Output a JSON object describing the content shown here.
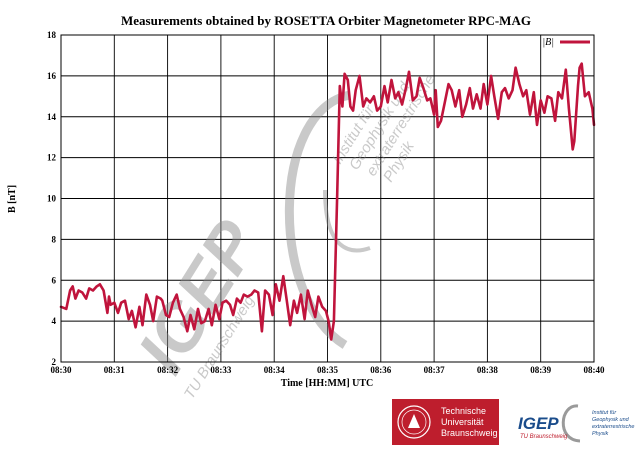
{
  "chart_data": {
    "type": "line",
    "title": "Measurements obtained by ROSETTA Orbiter Magnetometer RPC-MAG",
    "xlabel": "Time [HH:MM] UTC",
    "ylabel": "B [nT]",
    "xlim": [
      0,
      10
    ],
    "ylim": [
      2,
      18
    ],
    "grid": true,
    "legend_position": "top-right",
    "x_tick_labels": [
      "08:30",
      "08:31",
      "08:32",
      "08:33",
      "08:34",
      "08:35",
      "08:36",
      "08:37",
      "08:38",
      "08:39",
      "08:40"
    ],
    "y_ticks": [
      2,
      4,
      6,
      8,
      10,
      12,
      14,
      16,
      18
    ],
    "series": [
      {
        "name": "|B|",
        "color": "#c0143c",
        "points": [
          [
            0.0,
            4.7
          ],
          [
            0.1,
            4.6
          ],
          [
            0.17,
            5.5
          ],
          [
            0.22,
            5.7
          ],
          [
            0.27,
            5.1
          ],
          [
            0.33,
            5.5
          ],
          [
            0.4,
            5.4
          ],
          [
            0.47,
            5.1
          ],
          [
            0.53,
            5.6
          ],
          [
            0.6,
            5.5
          ],
          [
            0.67,
            5.7
          ],
          [
            0.73,
            5.8
          ],
          [
            0.8,
            5.5
          ],
          [
            0.87,
            4.4
          ],
          [
            0.9,
            5.2
          ],
          [
            0.93,
            4.8
          ],
          [
            1.0,
            4.9
          ],
          [
            1.07,
            4.4
          ],
          [
            1.13,
            4.9
          ],
          [
            1.2,
            5.0
          ],
          [
            1.27,
            4.1
          ],
          [
            1.33,
            4.5
          ],
          [
            1.4,
            3.7
          ],
          [
            1.47,
            4.7
          ],
          [
            1.53,
            3.8
          ],
          [
            1.6,
            5.3
          ],
          [
            1.67,
            4.8
          ],
          [
            1.73,
            4.0
          ],
          [
            1.8,
            5.2
          ],
          [
            1.87,
            5.1
          ],
          [
            1.9,
            5.0
          ],
          [
            1.97,
            4.3
          ],
          [
            2.03,
            4.2
          ],
          [
            2.1,
            4.9
          ],
          [
            2.17,
            5.3
          ],
          [
            2.23,
            4.6
          ],
          [
            2.3,
            4.2
          ],
          [
            2.37,
            3.5
          ],
          [
            2.43,
            4.3
          ],
          [
            2.5,
            3.6
          ],
          [
            2.57,
            4.6
          ],
          [
            2.63,
            3.9
          ],
          [
            2.7,
            4.0
          ],
          [
            2.77,
            4.6
          ],
          [
            2.83,
            3.8
          ],
          [
            2.9,
            4.8
          ],
          [
            2.97,
            4.1
          ],
          [
            3.03,
            4.9
          ],
          [
            3.1,
            5.0
          ],
          [
            3.17,
            4.8
          ],
          [
            3.23,
            4.3
          ],
          [
            3.3,
            5.1
          ],
          [
            3.37,
            4.9
          ],
          [
            3.43,
            5.3
          ],
          [
            3.5,
            5.2
          ],
          [
            3.57,
            5.3
          ],
          [
            3.63,
            5.5
          ],
          [
            3.7,
            5.4
          ],
          [
            3.77,
            3.5
          ],
          [
            3.83,
            5.5
          ],
          [
            3.9,
            5.3
          ],
          [
            3.97,
            4.3
          ],
          [
            4.03,
            5.8
          ],
          [
            4.1,
            5.0
          ],
          [
            4.17,
            6.2
          ],
          [
            4.23,
            5.1
          ],
          [
            4.3,
            3.8
          ],
          [
            4.37,
            5.0
          ],
          [
            4.43,
            4.4
          ],
          [
            4.5,
            5.3
          ],
          [
            4.57,
            4.1
          ],
          [
            4.63,
            5.5
          ],
          [
            4.7,
            4.8
          ],
          [
            4.77,
            4.2
          ],
          [
            4.83,
            5.2
          ],
          [
            4.9,
            4.7
          ],
          [
            4.97,
            4.5
          ],
          [
            5.02,
            4.0
          ],
          [
            5.07,
            3.1
          ],
          [
            5.12,
            4.0
          ],
          [
            5.18,
            10.0
          ],
          [
            5.23,
            15.5
          ],
          [
            5.28,
            14.5
          ],
          [
            5.32,
            16.1
          ],
          [
            5.38,
            15.8
          ],
          [
            5.43,
            14.5
          ],
          [
            5.48,
            14.3
          ],
          [
            5.53,
            15.3
          ],
          [
            5.6,
            16.0
          ],
          [
            5.67,
            14.5
          ],
          [
            5.73,
            14.9
          ],
          [
            5.8,
            14.7
          ],
          [
            5.87,
            15.0
          ],
          [
            5.93,
            14.3
          ],
          [
            6.0,
            14.5
          ],
          [
            6.07,
            15.5
          ],
          [
            6.13,
            14.7
          ],
          [
            6.2,
            15.8
          ],
          [
            6.27,
            14.9
          ],
          [
            6.33,
            15.2
          ],
          [
            6.4,
            14.6
          ],
          [
            6.47,
            15.4
          ],
          [
            6.53,
            16.2
          ],
          [
            6.6,
            14.8
          ],
          [
            6.67,
            15.0
          ],
          [
            6.73,
            15.9
          ],
          [
            6.8,
            15.4
          ],
          [
            6.87,
            14.8
          ],
          [
            6.93,
            14.9
          ],
          [
            7.0,
            14.1
          ],
          [
            7.03,
            15.3
          ],
          [
            7.07,
            13.5
          ],
          [
            7.13,
            13.8
          ],
          [
            7.2,
            14.7
          ],
          [
            7.27,
            15.6
          ],
          [
            7.33,
            15.3
          ],
          [
            7.4,
            14.5
          ],
          [
            7.47,
            15.3
          ],
          [
            7.53,
            14.0
          ],
          [
            7.6,
            14.6
          ],
          [
            7.67,
            15.4
          ],
          [
            7.73,
            14.4
          ],
          [
            7.8,
            15.1
          ],
          [
            7.87,
            14.4
          ],
          [
            7.93,
            15.6
          ],
          [
            8.0,
            14.6
          ],
          [
            8.07,
            16.0
          ],
          [
            8.13,
            15.0
          ],
          [
            8.2,
            13.9
          ],
          [
            8.27,
            15.2
          ],
          [
            8.33,
            15.4
          ],
          [
            8.4,
            14.9
          ],
          [
            8.47,
            15.3
          ],
          [
            8.53,
            16.4
          ],
          [
            8.6,
            15.6
          ],
          [
            8.67,
            15.0
          ],
          [
            8.73,
            15.3
          ],
          [
            8.8,
            14.1
          ],
          [
            8.87,
            15.2
          ],
          [
            8.93,
            13.6
          ],
          [
            9.0,
            14.8
          ],
          [
            9.07,
            14.2
          ],
          [
            9.13,
            15.0
          ],
          [
            9.2,
            14.9
          ],
          [
            9.27,
            13.8
          ],
          [
            9.33,
            15.2
          ],
          [
            9.4,
            14.9
          ],
          [
            9.47,
            16.3
          ],
          [
            9.53,
            14.4
          ],
          [
            9.6,
            12.4
          ],
          [
            9.63,
            12.8
          ],
          [
            9.7,
            15.5
          ],
          [
            9.73,
            16.4
          ],
          [
            9.77,
            16.6
          ],
          [
            9.83,
            15.0
          ],
          [
            9.9,
            15.2
          ],
          [
            9.97,
            14.4
          ],
          [
            10.0,
            13.6
          ]
        ]
      }
    ]
  },
  "watermark": {
    "logo_text": "IGEP",
    "subtitle": "TU Braunschweig",
    "institute_lines": [
      "Institut für",
      "Geophysik und",
      "extraterrestrische",
      "Physik"
    ]
  },
  "footer": {
    "tu_lines": [
      "Technische",
      "Universität",
      "Braunschweig"
    ],
    "igep_logo": "IGEP",
    "igep_sub": "TU Braunschweig",
    "institute_lines": [
      "Institut für",
      "Geophysik und",
      "extraterrestrische",
      "Physik"
    ]
  },
  "colors": {
    "series": "#c0143c",
    "tu_red": "#be1e2d",
    "igep_blue": "#1a4c8b",
    "watermark": "#8a8a8a"
  }
}
